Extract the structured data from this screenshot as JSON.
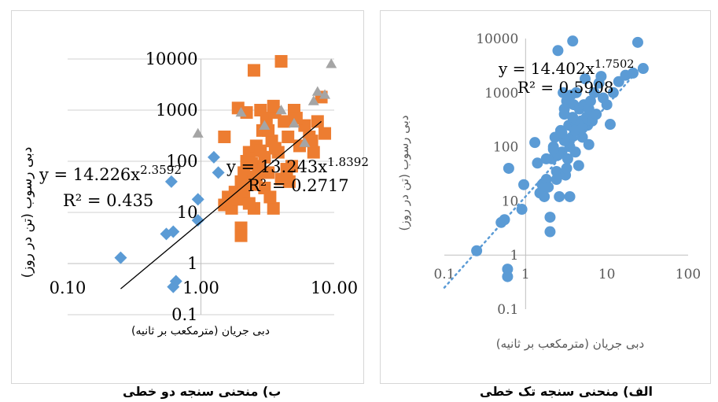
{
  "captions": {
    "left": "ب) منحنی سنجه دو خطی",
    "right": "الف) منحنی سنجه تک خطی"
  },
  "chart_data": [
    {
      "id": "bilinear",
      "type": "scatter",
      "xscale": "log",
      "yscale": "log",
      "xlabel": "دبی جریان (مترمکعب بر ثانیه)",
      "ylabel": "دبی رسوب (تن در روز)",
      "xlim": [
        0.1,
        10
      ],
      "ylim": [
        0.1,
        10000
      ],
      "x_ticks": [
        "0.10",
        "1.00",
        "10.00"
      ],
      "y_ticks": [
        "0.1",
        "1",
        "10",
        "100",
        "1000",
        "10000"
      ],
      "grid": true,
      "legend": "none",
      "colors": {
        "low": "#5b9bd5",
        "mid": "#ed7d31",
        "high": "#a5a5a5",
        "trend": "#000000"
      },
      "series": [
        {
          "marker": "diamond",
          "color": "#5b9bd5",
          "x": [
            0.25,
            0.55,
            0.62,
            0.65,
            0.6,
            0.62,
            0.95,
            0.95,
            1.25,
            1.35
          ],
          "y": [
            1.3,
            3.8,
            4.2,
            0.45,
            40,
            0.35,
            7,
            18,
            120,
            60
          ]
        },
        {
          "marker": "square",
          "color": "#ed7d31",
          "x": [
            1.5,
            1.6,
            1.7,
            1.8,
            1.9,
            2.0,
            2.0,
            2.1,
            2.2,
            2.3,
            2.4,
            2.5,
            2.5,
            2.6,
            2.7,
            2.8,
            2.9,
            3.0,
            3.1,
            3.2,
            3.4,
            3.5,
            3.6,
            3.8,
            4.0,
            4.2,
            4.5,
            4.8,
            5.0,
            5.5,
            6.0,
            6.5,
            7.0,
            7.5,
            8.0,
            8.5,
            2.0,
            2.1,
            2.3,
            2.6,
            3.0,
            3.3,
            3.6,
            4.0,
            4.4,
            1.9,
            2.2,
            3.5,
            5.2,
            2.4,
            2.8,
            3.2,
            1.5,
            4.6,
            6.8
          ],
          "y": [
            14,
            20,
            12,
            25,
            18,
            5,
            3.5,
            60,
            100,
            150,
            35,
            6000,
            12,
            200,
            80,
            1000,
            400,
            30,
            700,
            60,
            250,
            12,
            900,
            150,
            9000,
            600,
            300,
            80,
            1000,
            200,
            500,
            300,
            150,
            600,
            1800,
            350,
            40,
            25,
            15,
            50,
            120,
            20,
            180,
            45,
            70,
            1100,
            900,
            1200,
            700,
            90,
            160,
            400,
            300,
            40,
            250
          ]
        },
        {
          "marker": "triangle",
          "color": "#a5a5a5",
          "x": [
            0.95,
            2.0,
            3.0,
            4.0,
            5.0,
            6.0,
            7.0,
            7.5,
            8.5,
            9.5
          ],
          "y": [
            350,
            900,
            500,
            1000,
            550,
            230,
            1500,
            2300,
            2000,
            8000
          ]
        }
      ],
      "annotations": [
        {
          "text": "y = 14.226x",
          "exponent": "2.3592"
        },
        {
          "text": "R² = 0.435"
        },
        {
          "text": "y = 13.243x",
          "exponent": "1.8392"
        },
        {
          "text": "R² = 0.2717"
        }
      ],
      "trendlines": [
        {
          "label": "high-segment",
          "x": [
            0.25,
            8.0
          ],
          "y": [
            0.32,
            600
          ]
        }
      ]
    },
    {
      "id": "single",
      "type": "scatter",
      "xscale": "log",
      "yscale": "log",
      "xlabel": "دبی جریان (مترمکعب بر ثانیه)",
      "ylabel": "دبی رسوب (تن در روز)",
      "xlim": [
        0.1,
        100
      ],
      "ylim": [
        0.1,
        10000
      ],
      "x_ticks": [
        "0.1",
        "1",
        "10",
        "100"
      ],
      "y_ticks": [
        "0.1",
        "1",
        "10",
        "100",
        "1000",
        "10000"
      ],
      "grid": false,
      "legend": "none",
      "colors": {
        "points": "#5b9bd5",
        "trend": "#5b9bd5"
      },
      "series": [
        {
          "marker": "circle",
          "color": "#5b9bd5",
          "x": [
            0.25,
            0.5,
            0.55,
            0.6,
            0.62,
            0.6,
            0.9,
            0.95,
            1.3,
            1.4,
            1.5,
            1.6,
            1.7,
            1.8,
            1.9,
            2.0,
            2.0,
            2.1,
            2.2,
            2.3,
            2.4,
            2.5,
            2.6,
            2.7,
            2.8,
            2.9,
            3.0,
            3.1,
            3.2,
            3.3,
            3.4,
            3.5,
            3.6,
            3.7,
            3.8,
            3.9,
            4.0,
            4.1,
            4.2,
            4.4,
            4.6,
            4.8,
            5.0,
            5.2,
            5.4,
            5.6,
            5.8,
            6.0,
            6.3,
            6.6,
            7.0,
            7.4,
            8.0,
            8.5,
            9.0,
            10.0,
            11.0,
            12.0,
            14.0,
            17.0,
            21.0,
            24.0,
            28.0,
            3.5,
            4.5,
            2.5,
            3.0,
            1.8,
            2.2,
            4.0,
            5.0,
            3.2,
            2.8,
            6.0,
            3.8,
            2.4,
            3.0
          ],
          "y": [
            1.2,
            4,
            4.5,
            0.4,
            40,
            0.55,
            7,
            20,
            120,
            50,
            14,
            20,
            12,
            25,
            18,
            5,
            2.7,
            60,
            100,
            150,
            35,
            6000,
            12,
            200,
            80,
            1000,
            400,
            30,
            700,
            60,
            250,
            12,
            900,
            150,
            9000,
            600,
            300,
            80,
            1000,
            200,
            500,
            300,
            150,
            600,
            1800,
            350,
            250,
            500,
            700,
            300,
            1000,
            400,
            1500,
            2000,
            800,
            600,
            260,
            1000,
            1600,
            2100,
            2300,
            8500,
            2800,
            100,
            45,
            70,
            130,
            60,
            90,
            200,
            220,
            40,
            180,
            110,
            350,
            25,
            500
          ]
        }
      ],
      "annotations": [
        {
          "text": "y = 14.402x",
          "exponent": "1.7502"
        },
        {
          "text": "R² = 0.5908"
        }
      ],
      "trendlines": [
        {
          "label": "power-fit",
          "x": [
            0.1,
            30
          ],
          "y": [
            0.25,
            3700
          ]
        }
      ]
    }
  ]
}
